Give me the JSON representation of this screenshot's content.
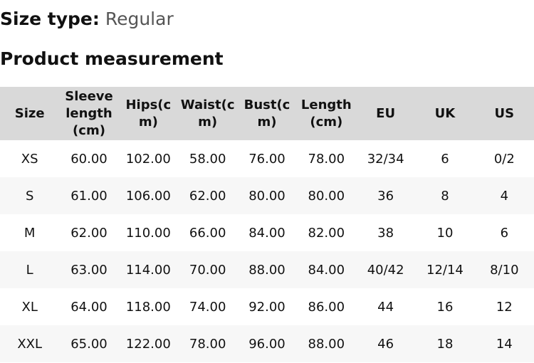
{
  "size_type": {
    "label": "Size type:",
    "value": "Regular"
  },
  "section_title": "Product measurement",
  "table": {
    "headers": [
      "Size",
      "Sleeve length (cm)",
      "Hips(cm)",
      "Waist(cm)",
      "Bust(cm)",
      "Length (cm)",
      "EU",
      "UK",
      "US"
    ],
    "rows": [
      [
        "XS",
        "60.00",
        "102.00",
        "58.00",
        "76.00",
        "78.00",
        "32/34",
        "6",
        "0/2"
      ],
      [
        "S",
        "61.00",
        "106.00",
        "62.00",
        "80.00",
        "80.00",
        "36",
        "8",
        "4"
      ],
      [
        "M",
        "62.00",
        "110.00",
        "66.00",
        "84.00",
        "82.00",
        "38",
        "10",
        "6"
      ],
      [
        "L",
        "63.00",
        "114.00",
        "70.00",
        "88.00",
        "84.00",
        "40/42",
        "12/14",
        "8/10"
      ],
      [
        "XL",
        "64.00",
        "118.00",
        "74.00",
        "92.00",
        "86.00",
        "44",
        "16",
        "12"
      ],
      [
        "XXL",
        "65.00",
        "122.00",
        "78.00",
        "96.00",
        "88.00",
        "46",
        "18",
        "14"
      ]
    ]
  }
}
